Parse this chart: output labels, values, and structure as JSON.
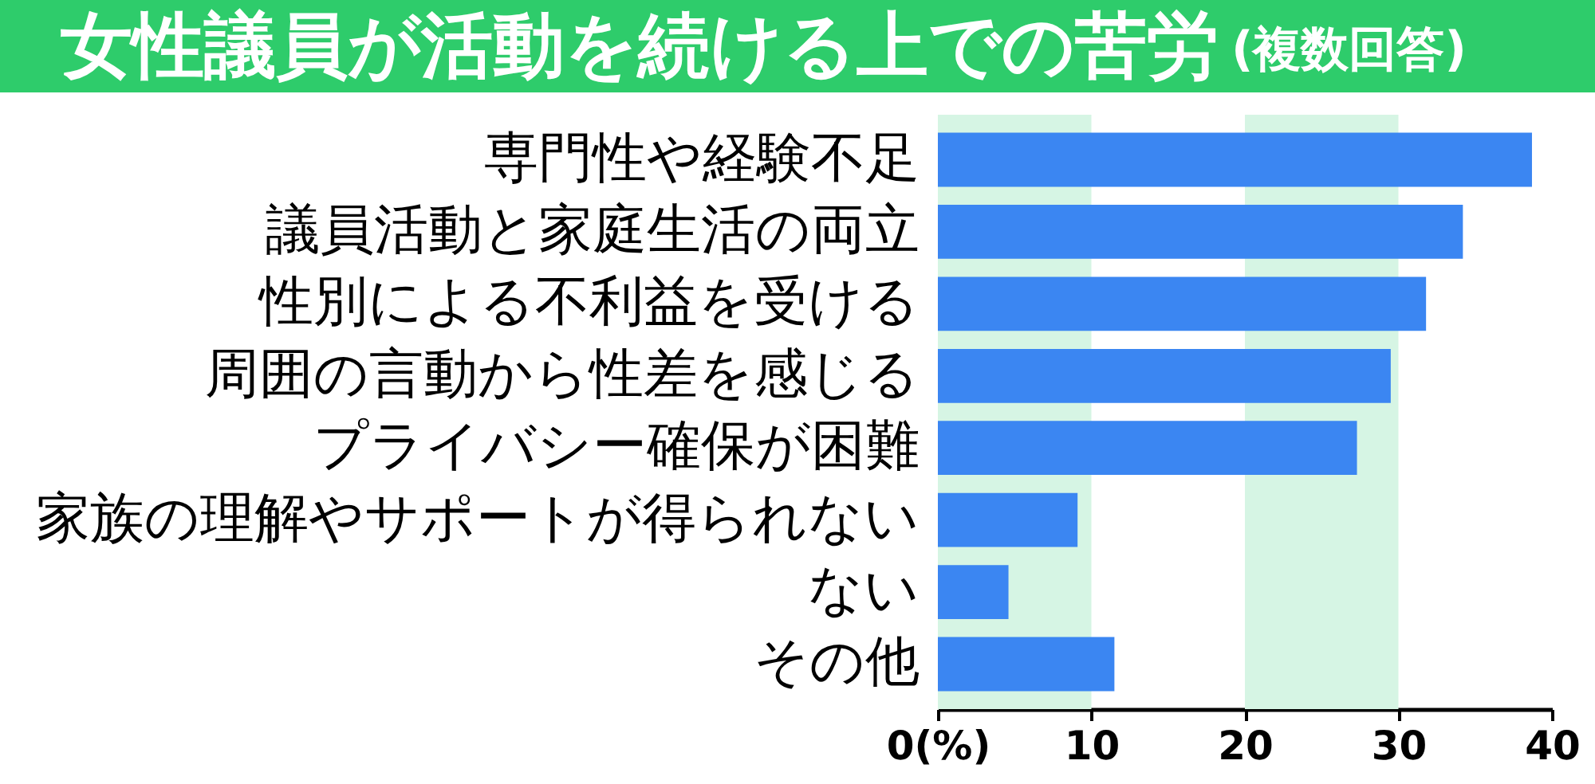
{
  "chart_data": {
    "type": "bar",
    "orientation": "horizontal",
    "title": "女性議員が活動を続ける上での苦労",
    "subtitle": "(複数回答)",
    "categories": [
      "専門性や経験不足",
      "議員活動と家庭生活の両立",
      "性別による不利益を受ける",
      "周囲の言動から性差を感じる",
      "プライバシー確保が困難",
      "家族の理解やサポートが得られない",
      "ない",
      "その他"
    ],
    "values": [
      38.7,
      34.2,
      31.8,
      29.5,
      27.3,
      9.1,
      4.6,
      11.5
    ],
    "color": "#3b86f2",
    "xlim": [
      0,
      40
    ],
    "xticks": [
      {
        "value": 0,
        "label": "0(%)"
      },
      10,
      20,
      30,
      40
    ],
    "bands": [
      {
        "axis": "x",
        "from": 0,
        "to": 10,
        "color": "#d6f5e4"
      },
      {
        "axis": "x",
        "from": 20,
        "to": 30,
        "color": "#d6f5e4"
      }
    ]
  }
}
